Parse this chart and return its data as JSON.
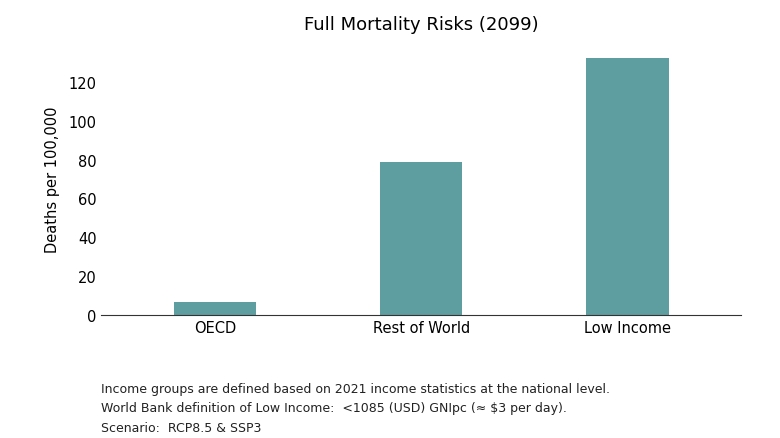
{
  "title": "Full Mortality Risks (2099)",
  "categories": [
    "OECD",
    "Rest of World",
    "Low Income"
  ],
  "values": [
    6.5,
    78.5,
    132
  ],
  "bar_color": "#5f9ea0",
  "ylabel": "Deaths per 100,000",
  "ylim": [
    0,
    140
  ],
  "yticks": [
    0,
    20,
    40,
    60,
    80,
    100,
    120
  ],
  "background_color": "#ffffff",
  "footnote_line1": "Income groups are defined based on 2021 income statistics at the national level.",
  "footnote_line2": "World Bank definition of Low Income:  <1085 (USD) GNIpc (≈ $3 per day).",
  "footnote_line3": "Scenario:  RCP8.5 & SSP3",
  "title_fontsize": 13,
  "label_fontsize": 10.5,
  "tick_fontsize": 10.5,
  "footnote_fontsize": 9
}
